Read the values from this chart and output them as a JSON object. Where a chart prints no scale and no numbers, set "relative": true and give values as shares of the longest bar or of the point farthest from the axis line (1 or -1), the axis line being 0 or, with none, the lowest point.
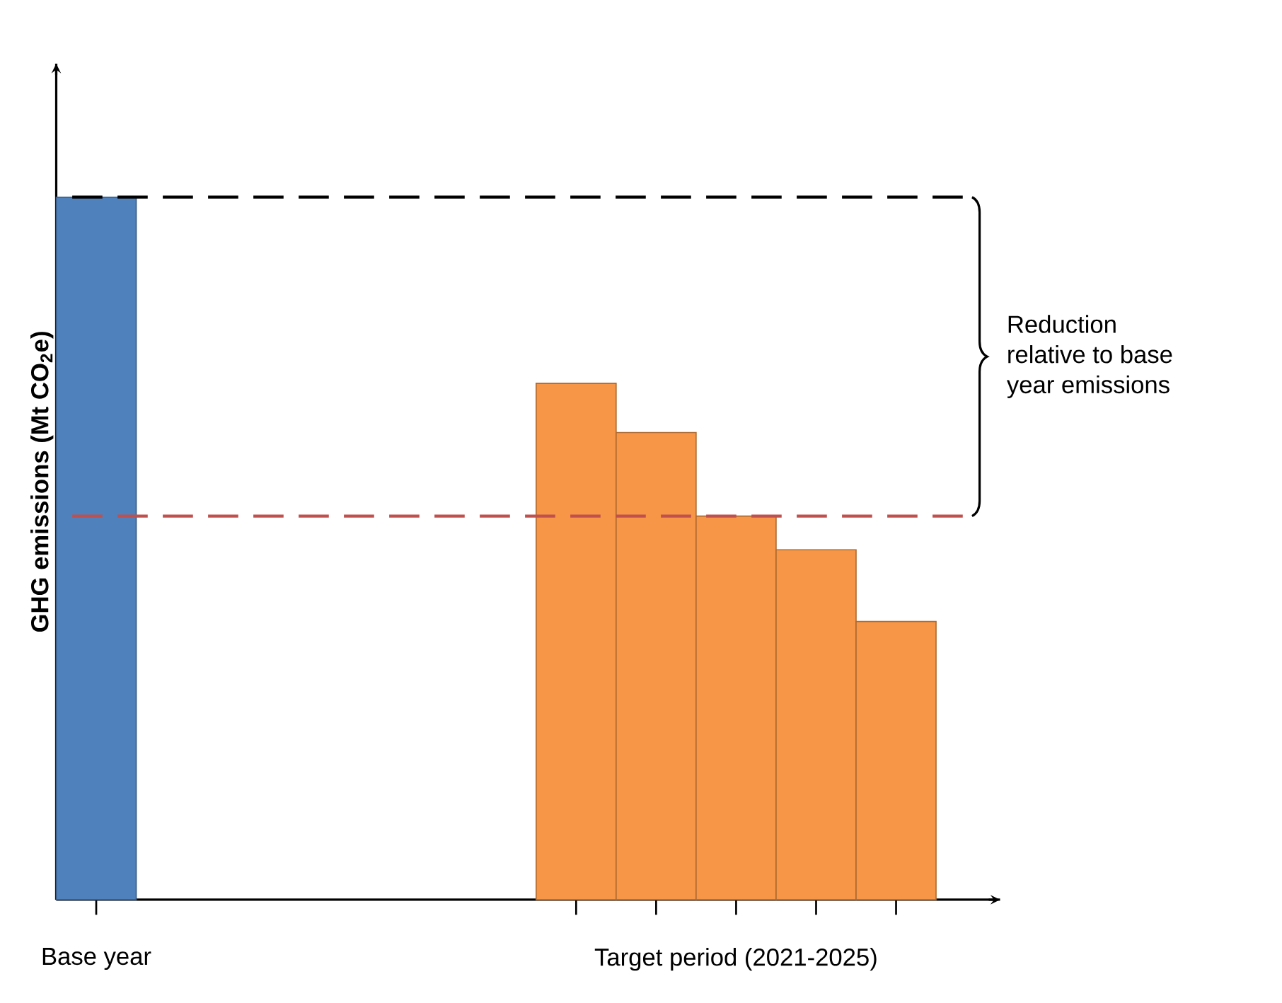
{
  "chart_data": {
    "type": "bar",
    "relative": true,
    "ylabel": "GHG  emissions (Mt CO$_{2}$e)",
    "categories": [
      "Base year",
      null,
      null,
      null,
      null,
      null,
      null,
      null,
      "Target period (2021-2025)",
      null,
      null
    ],
    "values": [
      1,
      null,
      null,
      null,
      null,
      null,
      0.735,
      0.665,
      0.546,
      0.498,
      0.396
    ],
    "colors": [
      "#4f81bd",
      null,
      null,
      null,
      null,
      null,
      "#f79646",
      "#f79646",
      "#f79646",
      "#f79646",
      "#f79646"
    ],
    "ref_lines": [
      {
        "axis": "y",
        "value": 1,
        "color": "#000000",
        "line_style": "dashed"
      },
      {
        "axis": "y",
        "value": 0.546,
        "color": "#c0504d",
        "line_style": "dashed"
      }
    ],
    "annotations": [
      "Reduction relative to base year emissions"
    ]
  }
}
